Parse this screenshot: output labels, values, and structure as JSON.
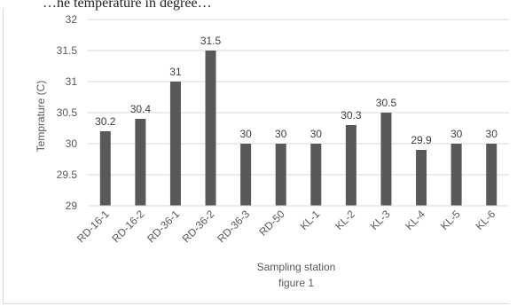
{
  "caption": "…he temperature in degree…",
  "chart_data": {
    "type": "bar",
    "categories": [
      "RD-16-1",
      "RD-16-2",
      "RD-36-1",
      "RD-36-2",
      "RD-36-3",
      "RD-50",
      "KL-1",
      "KL-2",
      "KL-3",
      "KL-4",
      "KL-5",
      "KL-6"
    ],
    "values": [
      30.2,
      30.4,
      31,
      31.5,
      30,
      30,
      30,
      30.3,
      30.5,
      29.9,
      30,
      30
    ],
    "data_labels": [
      "30.2",
      "30.4",
      "31",
      "31.5",
      "30",
      "30",
      "30",
      "30.3",
      "30.5",
      "29.9",
      "30",
      "30"
    ],
    "xlabel": "Sampling station",
    "figure_label": "figure 1",
    "ylabel": "Temprature (C)",
    "ylim": [
      29,
      32
    ],
    "yticks": [
      "29",
      "29.5",
      "30",
      "30.5",
      "31",
      "31.5",
      "32"
    ],
    "grid": true,
    "bar_color": "#595959",
    "grid_color": "#d9d9d9"
  }
}
